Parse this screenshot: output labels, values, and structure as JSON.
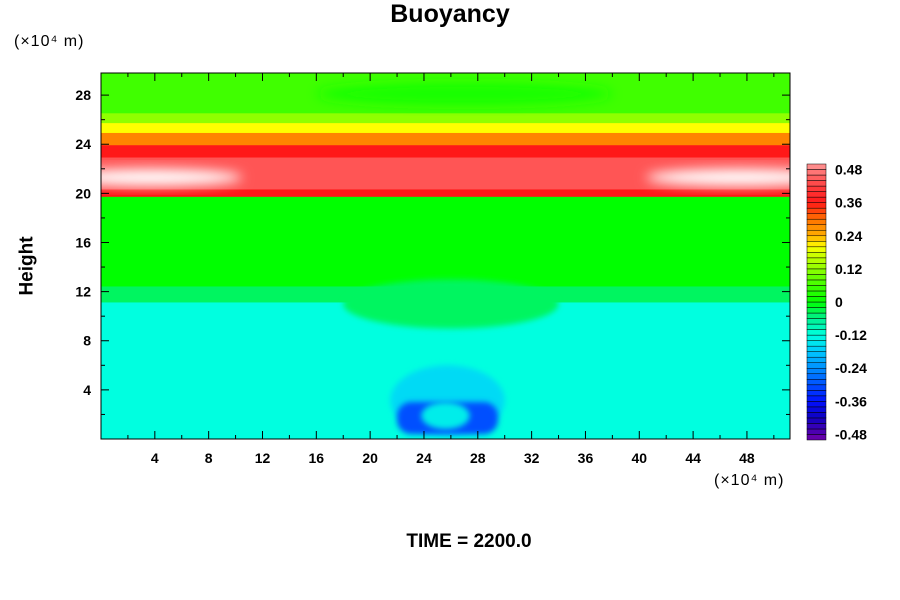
{
  "chart_data": {
    "type": "heatmap",
    "title": "Buoyancy",
    "xlabel": "",
    "ylabel": "Height",
    "x_unit": "(×10⁴ m)",
    "y_unit": "(×10⁴ m)",
    "footer": "TIME = 2200.0",
    "xlim": [
      0,
      51.2
    ],
    "ylim": [
      0,
      29.8
    ],
    "xticks": [
      4,
      8,
      12,
      16,
      20,
      24,
      28,
      32,
      36,
      40,
      44,
      48
    ],
    "yticks": [
      4,
      8,
      12,
      16,
      20,
      24,
      28
    ],
    "colorbar": {
      "range": [
        -0.5,
        0.5
      ],
      "step": 0.02,
      "tick_values": [
        0.48,
        0.36,
        0.24,
        0.12,
        0,
        -0.12,
        -0.24,
        -0.36,
        -0.48
      ],
      "tick_labels": [
        "0.48",
        "0.36",
        "0.24",
        "0.12",
        "0",
        "-0.12",
        "-0.24",
        "-0.36",
        "-0.48"
      ],
      "colormap": [
        [
          -0.5,
          "#7000a8"
        ],
        [
          -0.42,
          "#1000c0"
        ],
        [
          -0.36,
          "#0010ff"
        ],
        [
          -0.3,
          "#0050ff"
        ],
        [
          -0.24,
          "#0090ff"
        ],
        [
          -0.18,
          "#00c8ff"
        ],
        [
          -0.12,
          "#00ffe0"
        ],
        [
          -0.06,
          "#00f090"
        ],
        [
          0,
          "#00ff00"
        ],
        [
          0.06,
          "#40ff00"
        ],
        [
          0.12,
          "#90ff00"
        ],
        [
          0.18,
          "#d8ff00"
        ],
        [
          0.2,
          "#ffff00"
        ],
        [
          0.24,
          "#ffb000"
        ],
        [
          0.3,
          "#ff7000"
        ],
        [
          0.36,
          "#ff1818"
        ],
        [
          0.42,
          "#ff4040"
        ],
        [
          0.48,
          "#ff8080"
        ],
        [
          0.5,
          "#ff9898"
        ]
      ],
      "above_max_color": "#ffffff"
    },
    "bands": [
      {
        "y": [
          0,
          11.2
        ],
        "value": -0.12
      },
      {
        "y": [
          11.2,
          12.5
        ],
        "value": -0.04
      },
      {
        "y": [
          12.5,
          19.8
        ],
        "value": 0.0
      },
      {
        "y": [
          19.8,
          20.4
        ],
        "value": 0.36
      },
      {
        "y": [
          20.4,
          23.0
        ],
        "value": 0.44
      },
      {
        "y": [
          23.0,
          24.0
        ],
        "value": 0.36
      },
      {
        "y": [
          24.0,
          25.0
        ],
        "value": 0.28
      },
      {
        "y": [
          25.0,
          25.8
        ],
        "value": 0.2
      },
      {
        "y": [
          25.8,
          26.6
        ],
        "value": 0.12
      },
      {
        "y": [
          26.6,
          29.8
        ],
        "value": 0.06
      }
    ],
    "features": [
      {
        "name": "upper-green-core",
        "x": [
          16,
          38
        ],
        "y": [
          27.2,
          29.0
        ],
        "value": 0.02
      },
      {
        "name": "white-lobe-left",
        "x": [
          0,
          10.5
        ],
        "y": [
          20.6,
          22.0
        ],
        "value": 0.52
      },
      {
        "name": "white-lobe-right",
        "x": [
          40.5,
          51.2
        ],
        "y": [
          20.6,
          22.0
        ],
        "value": 0.52
      },
      {
        "name": "green-dip",
        "x": [
          18,
          34
        ],
        "y": [
          9.0,
          13.0
        ],
        "value": -0.04
      },
      {
        "name": "cold-pool-halo",
        "x": [
          21.5,
          30
        ],
        "y": [
          0.3,
          6.0
        ],
        "value": -0.16
      },
      {
        "name": "cold-pool",
        "x": [
          22,
          29.5
        ],
        "y": [
          0.4,
          3.0
        ],
        "value": -0.3
      },
      {
        "name": "cold-pool-center",
        "x": [
          23.8,
          27.4
        ],
        "y": [
          0.8,
          3.0
        ],
        "value": -0.14
      }
    ]
  }
}
